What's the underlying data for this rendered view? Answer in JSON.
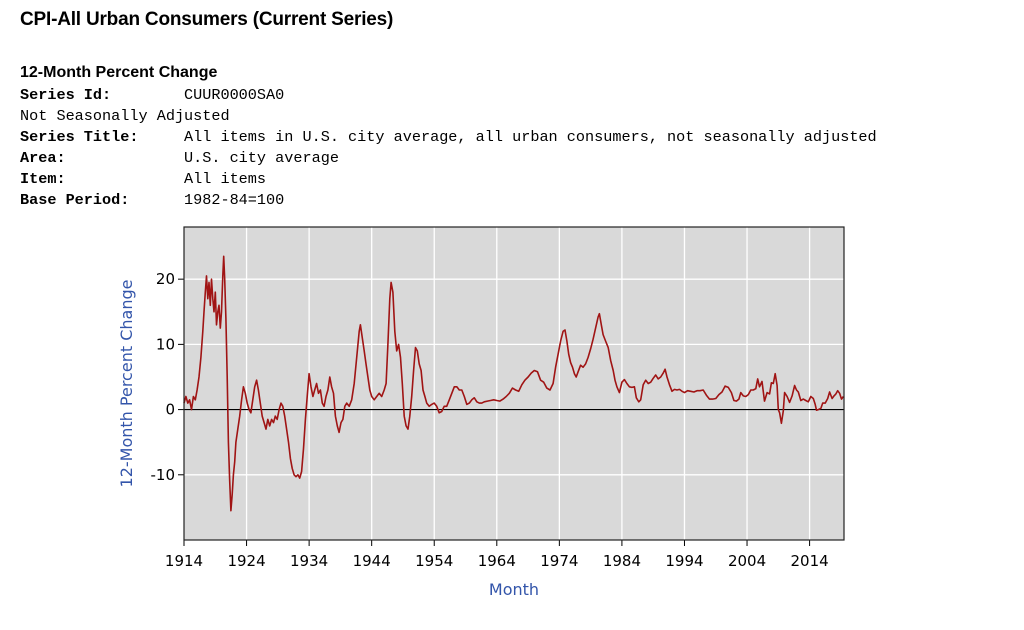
{
  "title": "CPI-All Urban Consumers (Current Series)",
  "subtitle": "12-Month Percent Change",
  "meta": {
    "series_id_label": "Series Id:",
    "series_id": "CUUR0000SA0",
    "seasonality": "Not Seasonally Adjusted",
    "series_title_label": "Series Title:",
    "series_title": "All items in U.S. city average, all urban consumers, not seasonally adjusted",
    "area_label": "Area:",
    "area": "U.S. city average",
    "item_label": "Item:",
    "item": "All items",
    "base_period_label": "Base Period:",
    "base_period": "1982-84=100"
  },
  "chart_data": {
    "type": "line",
    "title": "",
    "xlabel": "Month",
    "ylabel": "12-Month Percent Change",
    "xlim": [
      1914,
      2019.5
    ],
    "ylim": [
      -20,
      28
    ],
    "x_ticks": [
      "1914",
      "1924",
      "1934",
      "1944",
      "1954",
      "1964",
      "1974",
      "1984",
      "1994",
      "2004",
      "2014"
    ],
    "y_ticks": [
      "-10",
      "0",
      "10",
      "20"
    ],
    "grid": true,
    "colors": {
      "line": "#a01414",
      "plot_bg": "#d9d9d9",
      "grid": "#ffffff",
      "zero_line": "#000000"
    },
    "series": [
      {
        "points": [
          [
            1914.0,
            1.0
          ],
          [
            1914.3,
            2.0
          ],
          [
            1914.6,
            1.0
          ],
          [
            1914.9,
            1.5
          ],
          [
            1915.2,
            0.0
          ],
          [
            1915.5,
            2.0
          ],
          [
            1915.8,
            1.5
          ],
          [
            1916.1,
            3.0
          ],
          [
            1916.4,
            5.0
          ],
          [
            1916.7,
            8.0
          ],
          [
            1917.0,
            12.0
          ],
          [
            1917.2,
            15.0
          ],
          [
            1917.4,
            18.0
          ],
          [
            1917.6,
            20.5
          ],
          [
            1917.8,
            17.0
          ],
          [
            1918.0,
            19.5
          ],
          [
            1918.2,
            16.0
          ],
          [
            1918.4,
            20.0
          ],
          [
            1918.6,
            17.0
          ],
          [
            1918.8,
            15.0
          ],
          [
            1919.0,
            18.0
          ],
          [
            1919.2,
            13.0
          ],
          [
            1919.4,
            15.0
          ],
          [
            1919.6,
            16.0
          ],
          [
            1919.8,
            12.5
          ],
          [
            1920.0,
            15.0
          ],
          [
            1920.2,
            20.5
          ],
          [
            1920.35,
            23.5
          ],
          [
            1920.5,
            20.0
          ],
          [
            1920.7,
            14.0
          ],
          [
            1920.9,
            5.0
          ],
          [
            1921.1,
            -5.0
          ],
          [
            1921.3,
            -11.0
          ],
          [
            1921.5,
            -15.5
          ],
          [
            1921.7,
            -13.0
          ],
          [
            1921.9,
            -10.0
          ],
          [
            1922.1,
            -8.0
          ],
          [
            1922.3,
            -5.0
          ],
          [
            1922.6,
            -3.0
          ],
          [
            1922.9,
            -1.0
          ],
          [
            1923.2,
            1.5
          ],
          [
            1923.5,
            3.5
          ],
          [
            1923.8,
            2.5
          ],
          [
            1924.1,
            1.0
          ],
          [
            1924.4,
            0.0
          ],
          [
            1924.7,
            -0.5
          ],
          [
            1925.0,
            1.5
          ],
          [
            1925.3,
            3.5
          ],
          [
            1925.6,
            4.5
          ],
          [
            1925.9,
            3.0
          ],
          [
            1926.2,
            1.0
          ],
          [
            1926.5,
            -1.0
          ],
          [
            1926.8,
            -2.0
          ],
          [
            1927.1,
            -3.0
          ],
          [
            1927.4,
            -1.5
          ],
          [
            1927.7,
            -2.5
          ],
          [
            1928.0,
            -1.5
          ],
          [
            1928.3,
            -2.0
          ],
          [
            1928.6,
            -1.0
          ],
          [
            1928.9,
            -1.5
          ],
          [
            1929.2,
            0.0
          ],
          [
            1929.5,
            1.0
          ],
          [
            1929.8,
            0.5
          ],
          [
            1930.1,
            -1.0
          ],
          [
            1930.4,
            -3.0
          ],
          [
            1930.7,
            -5.0
          ],
          [
            1931.0,
            -7.5
          ],
          [
            1931.3,
            -9.0
          ],
          [
            1931.6,
            -10.0
          ],
          [
            1931.9,
            -10.3
          ],
          [
            1932.2,
            -10.0
          ],
          [
            1932.5,
            -10.5
          ],
          [
            1932.8,
            -9.5
          ],
          [
            1933.1,
            -6.0
          ],
          [
            1933.4,
            -1.5
          ],
          [
            1933.7,
            2.0
          ],
          [
            1934.0,
            5.5
          ],
          [
            1934.3,
            3.5
          ],
          [
            1934.6,
            2.0
          ],
          [
            1934.9,
            3.0
          ],
          [
            1935.2,
            4.0
          ],
          [
            1935.5,
            2.5
          ],
          [
            1935.8,
            3.0
          ],
          [
            1936.1,
            1.0
          ],
          [
            1936.4,
            0.5
          ],
          [
            1936.7,
            2.0
          ],
          [
            1937.0,
            3.0
          ],
          [
            1937.3,
            5.0
          ],
          [
            1937.6,
            3.5
          ],
          [
            1937.9,
            2.5
          ],
          [
            1938.2,
            -1.0
          ],
          [
            1938.5,
            -2.5
          ],
          [
            1938.8,
            -3.5
          ],
          [
            1939.1,
            -2.0
          ],
          [
            1939.4,
            -1.5
          ],
          [
            1939.7,
            0.5
          ],
          [
            1940.0,
            1.0
          ],
          [
            1940.4,
            0.5
          ],
          [
            1940.8,
            1.5
          ],
          [
            1941.2,
            4.0
          ],
          [
            1941.6,
            8.0
          ],
          [
            1942.0,
            12.0
          ],
          [
            1942.2,
            13.0
          ],
          [
            1942.5,
            11.0
          ],
          [
            1942.8,
            9.0
          ],
          [
            1943.1,
            7.0
          ],
          [
            1943.4,
            5.0
          ],
          [
            1943.7,
            3.0
          ],
          [
            1944.0,
            2.0
          ],
          [
            1944.4,
            1.5
          ],
          [
            1944.8,
            2.0
          ],
          [
            1945.2,
            2.5
          ],
          [
            1945.6,
            2.0
          ],
          [
            1946.0,
            3.0
          ],
          [
            1946.3,
            4.0
          ],
          [
            1946.6,
            10.0
          ],
          [
            1946.9,
            17.0
          ],
          [
            1947.1,
            19.5
          ],
          [
            1947.4,
            18.0
          ],
          [
            1947.7,
            12.0
          ],
          [
            1948.0,
            9.0
          ],
          [
            1948.3,
            10.0
          ],
          [
            1948.6,
            8.0
          ],
          [
            1948.9,
            4.0
          ],
          [
            1949.2,
            -1.0
          ],
          [
            1949.5,
            -2.5
          ],
          [
            1949.8,
            -3.0
          ],
          [
            1950.1,
            -1.0
          ],
          [
            1950.4,
            2.0
          ],
          [
            1950.7,
            6.0
          ],
          [
            1951.0,
            9.5
          ],
          [
            1951.3,
            9.0
          ],
          [
            1951.6,
            7.0
          ],
          [
            1951.9,
            6.0
          ],
          [
            1952.2,
            3.0
          ],
          [
            1952.5,
            2.0
          ],
          [
            1952.8,
            1.0
          ],
          [
            1953.2,
            0.5
          ],
          [
            1953.6,
            0.8
          ],
          [
            1954.0,
            1.0
          ],
          [
            1954.4,
            0.5
          ],
          [
            1954.8,
            -0.5
          ],
          [
            1955.2,
            -0.3
          ],
          [
            1955.6,
            0.5
          ],
          [
            1956.0,
            0.5
          ],
          [
            1956.4,
            1.5
          ],
          [
            1956.8,
            2.5
          ],
          [
            1957.2,
            3.5
          ],
          [
            1957.6,
            3.5
          ],
          [
            1958.0,
            3.0
          ],
          [
            1958.4,
            3.0
          ],
          [
            1958.8,
            2.0
          ],
          [
            1959.2,
            0.8
          ],
          [
            1959.6,
            1.0
          ],
          [
            1960.0,
            1.5
          ],
          [
            1960.4,
            1.8
          ],
          [
            1960.8,
            1.2
          ],
          [
            1961.2,
            1.0
          ],
          [
            1961.6,
            1.0
          ],
          [
            1962.0,
            1.2
          ],
          [
            1962.5,
            1.3
          ],
          [
            1963.0,
            1.4
          ],
          [
            1963.5,
            1.5
          ],
          [
            1964.0,
            1.4
          ],
          [
            1964.5,
            1.3
          ],
          [
            1965.0,
            1.6
          ],
          [
            1965.5,
            2.0
          ],
          [
            1966.0,
            2.5
          ],
          [
            1966.5,
            3.3
          ],
          [
            1967.0,
            3.0
          ],
          [
            1967.5,
            2.8
          ],
          [
            1968.0,
            3.8
          ],
          [
            1968.5,
            4.5
          ],
          [
            1969.0,
            5.0
          ],
          [
            1969.5,
            5.6
          ],
          [
            1970.0,
            6.0
          ],
          [
            1970.5,
            5.8
          ],
          [
            1971.0,
            4.5
          ],
          [
            1971.5,
            4.2
          ],
          [
            1972.0,
            3.3
          ],
          [
            1972.5,
            3.0
          ],
          [
            1973.0,
            4.0
          ],
          [
            1973.4,
            6.5
          ],
          [
            1973.8,
            8.5
          ],
          [
            1974.2,
            10.5
          ],
          [
            1974.6,
            12.0
          ],
          [
            1974.9,
            12.2
          ],
          [
            1975.2,
            10.5
          ],
          [
            1975.5,
            8.5
          ],
          [
            1975.8,
            7.2
          ],
          [
            1976.1,
            6.5
          ],
          [
            1976.4,
            5.5
          ],
          [
            1976.7,
            5.0
          ],
          [
            1977.0,
            5.8
          ],
          [
            1977.4,
            6.8
          ],
          [
            1977.8,
            6.5
          ],
          [
            1978.2,
            7.0
          ],
          [
            1978.6,
            8.0
          ],
          [
            1979.0,
            9.3
          ],
          [
            1979.4,
            10.8
          ],
          [
            1979.8,
            12.5
          ],
          [
            1980.2,
            14.2
          ],
          [
            1980.4,
            14.7
          ],
          [
            1980.7,
            13.0
          ],
          [
            1981.0,
            11.5
          ],
          [
            1981.4,
            10.5
          ],
          [
            1981.8,
            9.5
          ],
          [
            1982.2,
            7.5
          ],
          [
            1982.6,
            6.0
          ],
          [
            1982.9,
            4.5
          ],
          [
            1983.2,
            3.5
          ],
          [
            1983.6,
            2.6
          ],
          [
            1984.0,
            4.2
          ],
          [
            1984.4,
            4.6
          ],
          [
            1984.8,
            4.0
          ],
          [
            1985.2,
            3.5
          ],
          [
            1985.6,
            3.4
          ],
          [
            1986.0,
            3.5
          ],
          [
            1986.3,
            1.8
          ],
          [
            1986.7,
            1.2
          ],
          [
            1987.0,
            1.5
          ],
          [
            1987.4,
            3.8
          ],
          [
            1987.8,
            4.5
          ],
          [
            1988.2,
            4.0
          ],
          [
            1988.6,
            4.2
          ],
          [
            1989.0,
            4.8
          ],
          [
            1989.4,
            5.3
          ],
          [
            1989.8,
            4.7
          ],
          [
            1990.2,
            5.0
          ],
          [
            1990.6,
            5.6
          ],
          [
            1990.9,
            6.2
          ],
          [
            1991.2,
            5.0
          ],
          [
            1991.6,
            3.8
          ],
          [
            1992.0,
            2.8
          ],
          [
            1992.4,
            3.1
          ],
          [
            1992.8,
            3.0
          ],
          [
            1993.2,
            3.1
          ],
          [
            1993.6,
            2.8
          ],
          [
            1994.0,
            2.6
          ],
          [
            1994.5,
            2.9
          ],
          [
            1995.0,
            2.8
          ],
          [
            1995.5,
            2.7
          ],
          [
            1996.0,
            2.9
          ],
          [
            1996.5,
            2.9
          ],
          [
            1997.0,
            3.0
          ],
          [
            1997.5,
            2.2
          ],
          [
            1998.0,
            1.6
          ],
          [
            1998.5,
            1.6
          ],
          [
            1999.0,
            1.7
          ],
          [
            1999.5,
            2.3
          ],
          [
            2000.0,
            2.7
          ],
          [
            2000.5,
            3.6
          ],
          [
            2001.0,
            3.4
          ],
          [
            2001.5,
            2.6
          ],
          [
            2001.9,
            1.4
          ],
          [
            2002.3,
            1.3
          ],
          [
            2002.7,
            1.6
          ],
          [
            2003.0,
            2.6
          ],
          [
            2003.4,
            2.1
          ],
          [
            2003.8,
            2.0
          ],
          [
            2004.2,
            2.3
          ],
          [
            2004.6,
            3.0
          ],
          [
            2005.0,
            3.0
          ],
          [
            2005.4,
            3.2
          ],
          [
            2005.7,
            4.7
          ],
          [
            2006.0,
            3.5
          ],
          [
            2006.4,
            4.3
          ],
          [
            2006.8,
            1.3
          ],
          [
            2007.2,
            2.6
          ],
          [
            2007.6,
            2.4
          ],
          [
            2007.9,
            4.1
          ],
          [
            2008.2,
            4.0
          ],
          [
            2008.5,
            5.5
          ],
          [
            2008.8,
            3.7
          ],
          [
            2009.0,
            0.0
          ],
          [
            2009.2,
            -0.5
          ],
          [
            2009.5,
            -2.1
          ],
          [
            2009.8,
            -0.2
          ],
          [
            2010.0,
            2.6
          ],
          [
            2010.4,
            2.0
          ],
          [
            2010.8,
            1.1
          ],
          [
            2011.2,
            2.1
          ],
          [
            2011.6,
            3.7
          ],
          [
            2011.9,
            3.0
          ],
          [
            2012.2,
            2.7
          ],
          [
            2012.6,
            1.4
          ],
          [
            2013.0,
            1.6
          ],
          [
            2013.4,
            1.4
          ],
          [
            2013.8,
            1.2
          ],
          [
            2014.2,
            2.0
          ],
          [
            2014.6,
            1.7
          ],
          [
            2014.9,
            0.8
          ],
          [
            2015.1,
            -0.1
          ],
          [
            2015.4,
            0.0
          ],
          [
            2015.8,
            0.2
          ],
          [
            2016.1,
            1.0
          ],
          [
            2016.5,
            1.0
          ],
          [
            2016.9,
            1.7
          ],
          [
            2017.2,
            2.7
          ],
          [
            2017.6,
            1.7
          ],
          [
            2017.9,
            2.1
          ],
          [
            2018.2,
            2.4
          ],
          [
            2018.5,
            2.9
          ],
          [
            2018.8,
            2.5
          ],
          [
            2019.1,
            1.6
          ],
          [
            2019.4,
            2.0
          ]
        ]
      }
    ]
  }
}
